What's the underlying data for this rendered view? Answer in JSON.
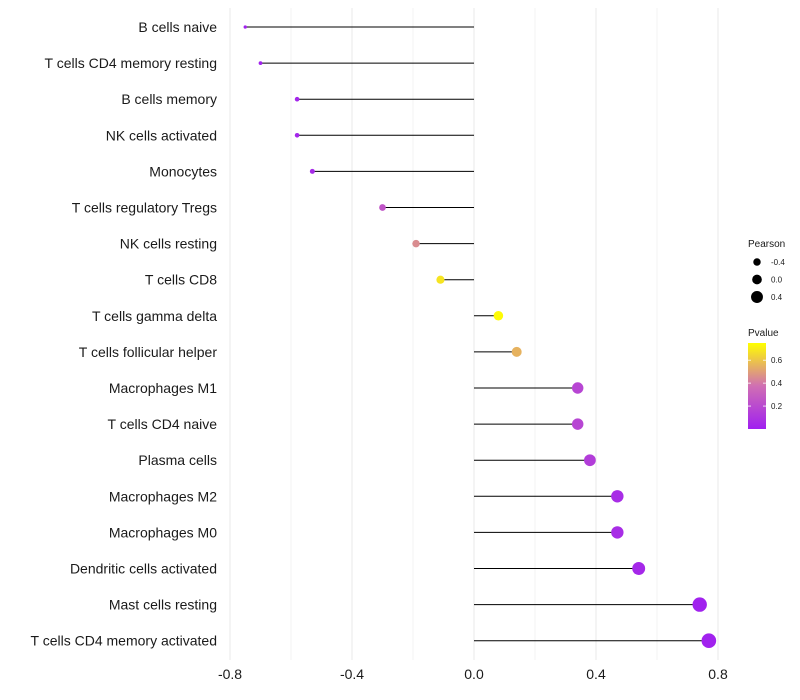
{
  "chart_data": {
    "type": "lollipop",
    "xlim": [
      -0.8,
      0.8
    ],
    "x_ticks": [
      -0.8,
      -0.4,
      0.0,
      0.4,
      0.8
    ],
    "x_tick_labels": [
      "-0.8",
      "-0.4",
      "0.0",
      "0.4",
      "0.8"
    ],
    "grid": true,
    "legend_position": "right",
    "categories": [
      "B cells naive",
      "T cells CD4 memory resting",
      "B cells memory",
      "NK cells activated",
      "Monocytes",
      "T cells regulatory  Tregs ",
      "NK cells resting",
      "T cells CD8",
      "T cells gamma delta",
      "T cells follicular helper",
      "Macrophages M1",
      "T cells CD4 naive",
      "Plasma cells",
      "Macrophages M2",
      "Macrophages M0",
      "Dendritic cells activated",
      "Mast cells resting",
      "T cells CD4 memory activated"
    ],
    "pearson": [
      -0.75,
      -0.7,
      -0.58,
      -0.58,
      -0.53,
      -0.3,
      -0.19,
      -0.11,
      0.08,
      0.14,
      0.34,
      0.34,
      0.38,
      0.47,
      0.47,
      0.54,
      0.74,
      0.77
    ],
    "pvalue": [
      0.01,
      0.01,
      0.03,
      0.03,
      0.05,
      0.25,
      0.45,
      0.68,
      0.74,
      0.55,
      0.18,
      0.18,
      0.14,
      0.06,
      0.06,
      0.04,
      0.01,
      0.01
    ],
    "size_legend": {
      "title": "Pearson",
      "values": [
        -0.4,
        0.0,
        0.4
      ],
      "labels": [
        "-0.4",
        "0.0",
        "0.4"
      ]
    },
    "color_legend": {
      "title": "Pvalue",
      "ticks": [
        0.6,
        0.4,
        0.2
      ],
      "labels": [
        "0.6",
        "0.4",
        "0.2"
      ],
      "range": [
        0.0,
        0.75
      ],
      "low_color": "#a020f0",
      "mid_color": "#d06fb3",
      "high_color": "#ffff00"
    },
    "colors": {
      "stem": "#000000",
      "grid": "#ebebeb"
    }
  }
}
